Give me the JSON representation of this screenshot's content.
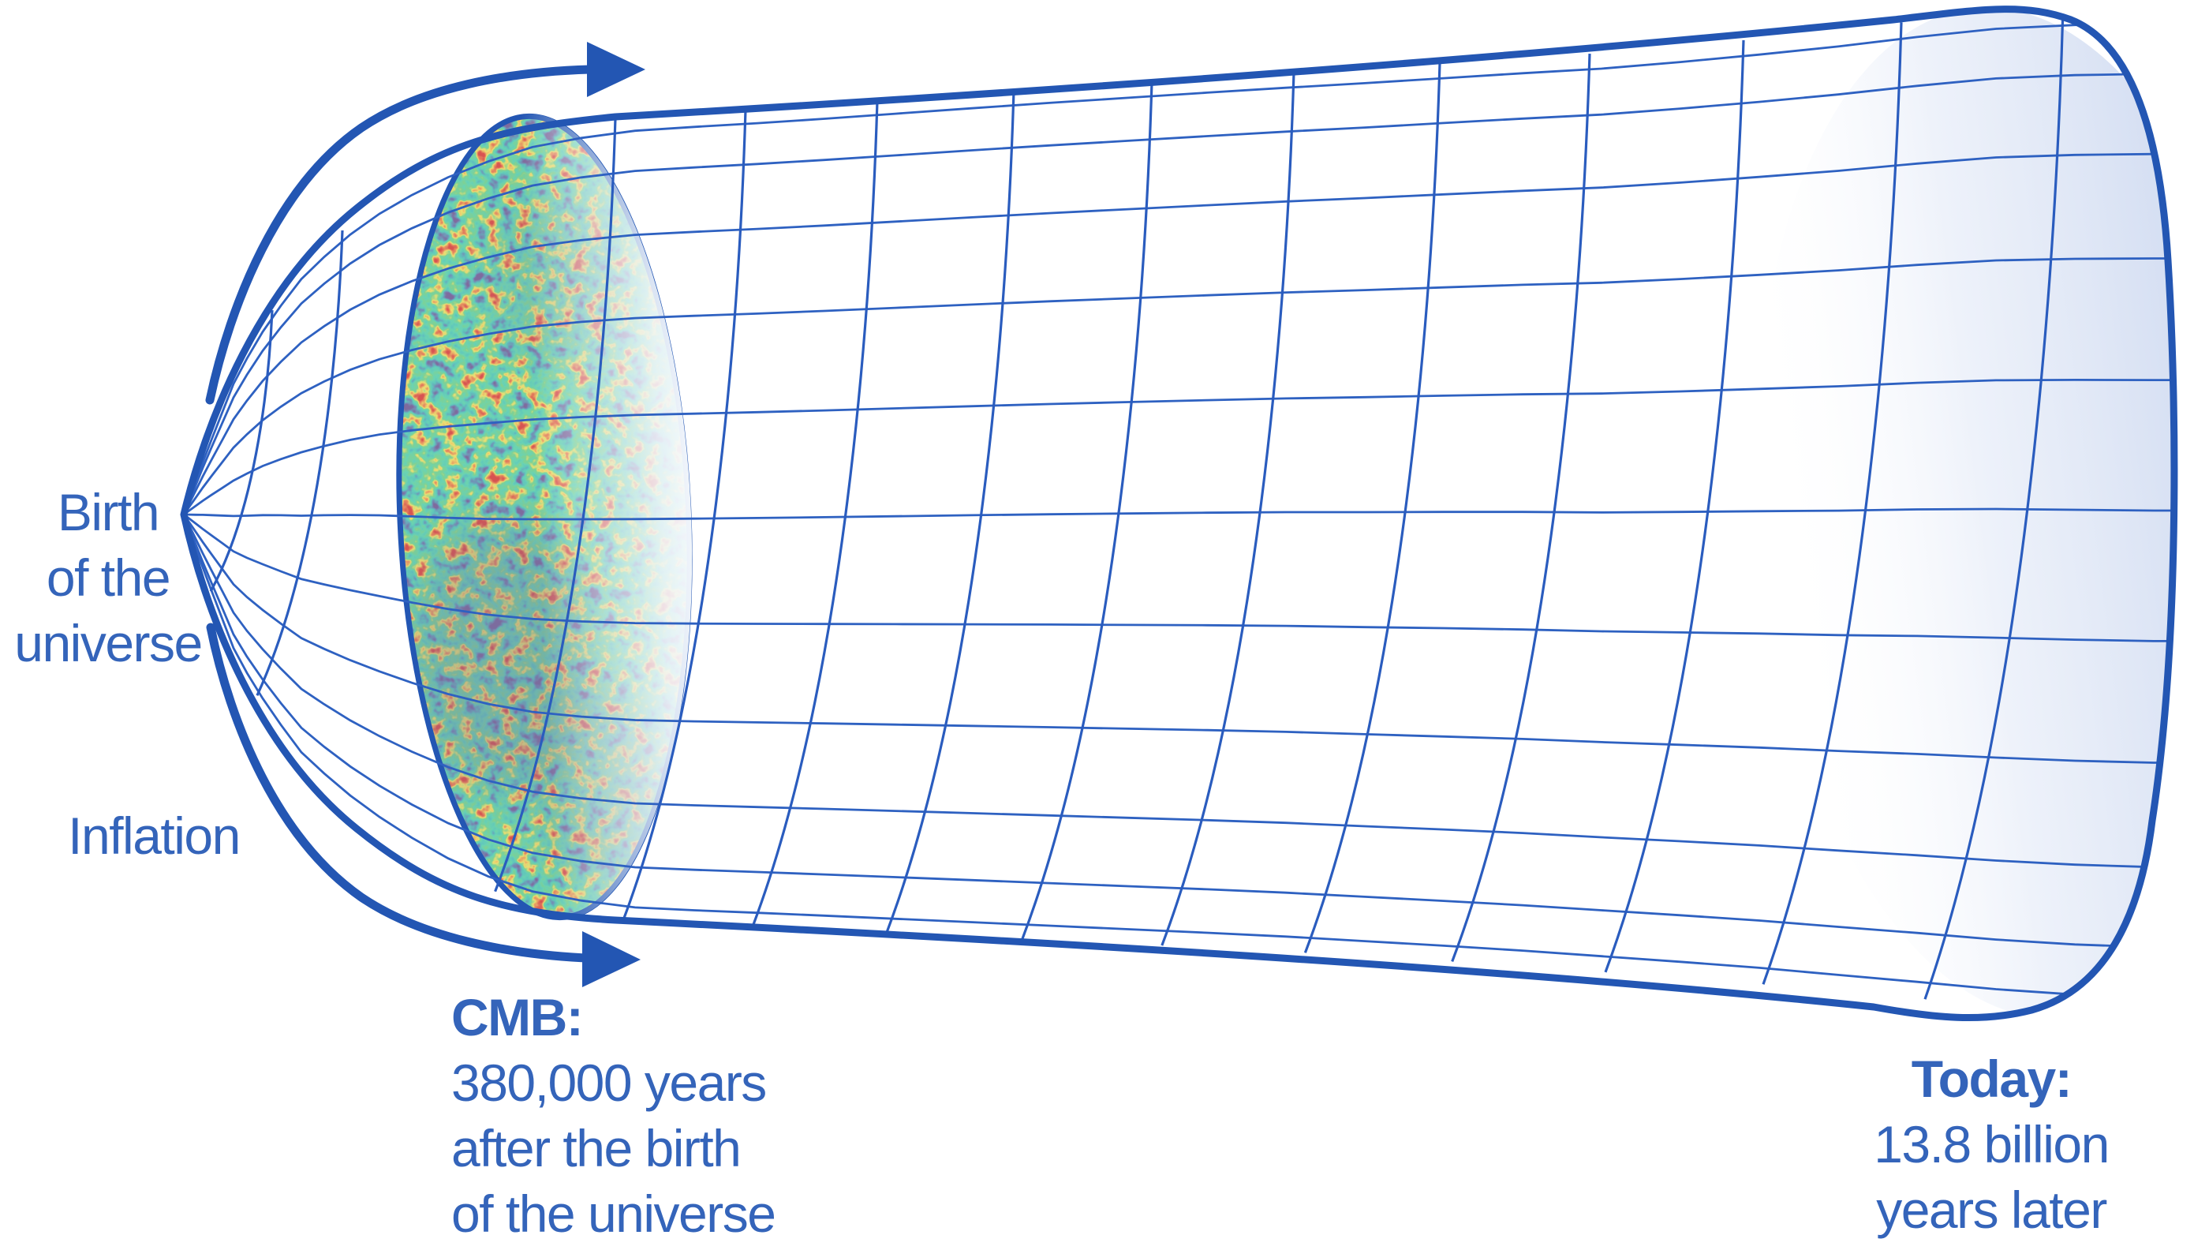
{
  "diagram": {
    "subject": "expansion-of-the-universe-horn",
    "labels": {
      "birth": {
        "lines": [
          "Birth",
          "of the",
          "universe"
        ]
      },
      "inflation": "Inflation",
      "cmb": {
        "heading": "CMB:",
        "lines": [
          "380,000 years",
          "after the birth",
          "of the universe"
        ]
      },
      "today": {
        "heading": "Today:",
        "lines": [
          "13.8 billion",
          "years later"
        ]
      }
    },
    "icons": [
      "right-arrow-top",
      "right-arrow-bottom"
    ],
    "colors": {
      "outline_blue": "#2356b3",
      "grid_blue": "#2e61c1",
      "text_blue": "#3464ba",
      "mouth_fill": "#c7d4ee",
      "cmb_teal": "#63d0bd",
      "cmb_green": "#7ed49f",
      "cmb_yellow": "#efe07a",
      "cmb_red": "#d75752",
      "cmb_purple": "#837aa6"
    }
  }
}
